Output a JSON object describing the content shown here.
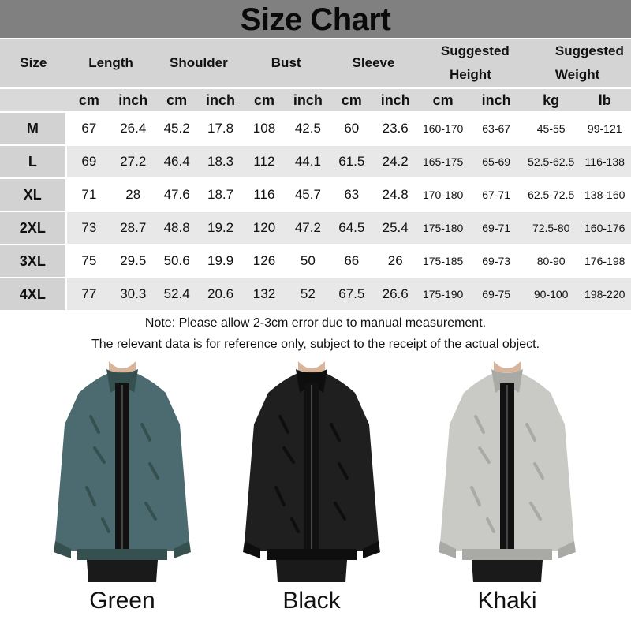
{
  "title": "Size Chart",
  "headers": [
    "Size",
    "Length",
    "Shoulder",
    "Bust",
    "Sleeve",
    "Suggested Height",
    "Suggested Weight"
  ],
  "units": [
    "cm",
    "inch",
    "cm",
    "inch",
    "cm",
    "inch",
    "cm",
    "inch",
    "cm",
    "inch",
    "kg",
    "lb"
  ],
  "rows": [
    [
      "M",
      "67",
      "26.4",
      "45.2",
      "17.8",
      "108",
      "42.5",
      "60",
      "23.6",
      "160-170",
      "63-67",
      "45-55",
      "99-121"
    ],
    [
      "L",
      "69",
      "27.2",
      "46.4",
      "18.3",
      "112",
      "44.1",
      "61.5",
      "24.2",
      "165-175",
      "65-69",
      "52.5-62.5",
      "116-138"
    ],
    [
      "XL",
      "71",
      "28",
      "47.6",
      "18.7",
      "116",
      "45.7",
      "63",
      "24.8",
      "170-180",
      "67-71",
      "62.5-72.5",
      "138-160"
    ],
    [
      "2XL",
      "73",
      "28.7",
      "48.8",
      "19.2",
      "120",
      "47.2",
      "64.5",
      "25.4",
      "175-180",
      "69-71",
      "72.5-80",
      "160-176"
    ],
    [
      "3XL",
      "75",
      "29.5",
      "50.6",
      "19.9",
      "126",
      "50",
      "66",
      "26",
      "175-185",
      "69-73",
      "80-90",
      "176-198"
    ],
    [
      "4XL",
      "77",
      "30.3",
      "52.4",
      "20.6",
      "132",
      "52",
      "67.5",
      "26.6",
      "175-190",
      "69-75",
      "90-100",
      "198-220"
    ]
  ],
  "notes": [
    "Note: Please allow 2-3cm error due to manual measurement.",
    "The relevant data is for reference only, subject to the receipt of the actual object."
  ],
  "colors": [
    {
      "label": "Green",
      "hex": "#4b6b70"
    },
    {
      "label": "Black",
      "hex": "#1f1f1f"
    },
    {
      "label": "Khaki",
      "hex": "#c9c9c5"
    }
  ],
  "theme": {
    "title_bar": "#808080",
    "header_bg": "#d4d4d4",
    "stripe": "#e8e8e8"
  }
}
